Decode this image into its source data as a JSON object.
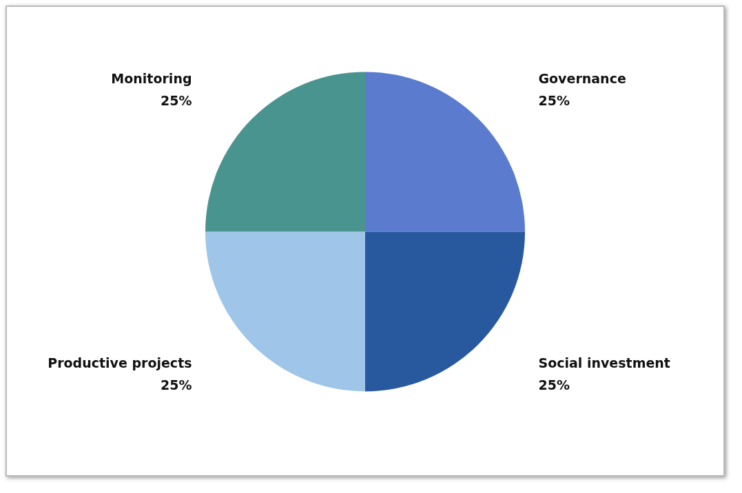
{
  "chart_data": {
    "type": "pie",
    "categories": [
      "Governance",
      "Social investment",
      "Productive projects",
      "Monitoring"
    ],
    "values": [
      25,
      25,
      25,
      25
    ],
    "colors": [
      "#5b7bcf",
      "#28599f",
      "#9fc5e8",
      "#4a9490"
    ],
    "value_labels": [
      "25%",
      "25%",
      "25%",
      "25%"
    ],
    "legend": false
  }
}
